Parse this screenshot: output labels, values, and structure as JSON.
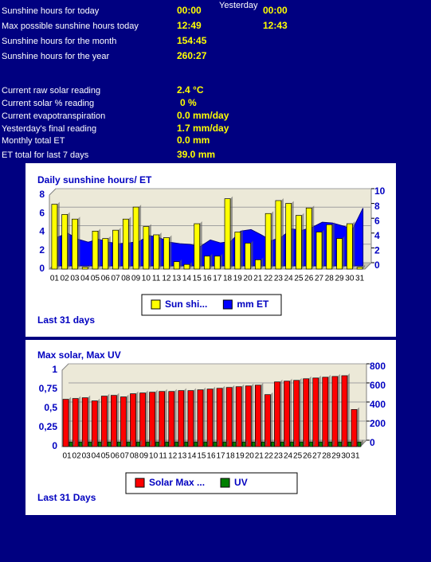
{
  "yesterday_header": "Yesterday",
  "stats": [
    {
      "label": "Sunshine hours for today",
      "value": "00:00",
      "yesterday": "00:00"
    },
    {
      "label": "Max possible sunshine hours today",
      "value": "12:49",
      "yesterday": "12:43"
    },
    {
      "label": "Sunshine hours for the month",
      "value": "154:45"
    },
    {
      "label": "Sunshine hours for the year",
      "value": "260:27"
    }
  ],
  "readings": [
    {
      "label": "Current raw solar reading",
      "value": "2.4 °C"
    },
    {
      "label": "Current solar % reading",
      "value": "0 %"
    },
    {
      "label": "Current evapotranspiration",
      "value": "0.0 mm/day"
    },
    {
      "label": "Yesterday's final reading",
      "value": "1.7 mm/day"
    },
    {
      "label": "Monthly total ET",
      "value": "0.0 mm"
    },
    {
      "label": "ET total for last 7 days",
      "value": "39.0 mm"
    }
  ],
  "chart_data": [
    {
      "type": "bar",
      "title": "Daily sunshine hours/ ET",
      "footer": "Last 31 days",
      "categories": [
        "01",
        "02",
        "03",
        "04",
        "05",
        "06",
        "07",
        "08",
        "09",
        "10",
        "11",
        "12",
        "13",
        "14",
        "15",
        "16",
        "17",
        "18",
        "19",
        "20",
        "21",
        "22",
        "23",
        "24",
        "25",
        "26",
        "27",
        "28",
        "29",
        "30",
        "31"
      ],
      "series": [
        {
          "name": "Sun shi...",
          "type": "bar",
          "color": "#ffff00",
          "values": [
            7.0,
            5.9,
            5.4,
            0.2,
            4.1,
            3.3,
            4.2,
            5.4,
            6.7,
            4.6,
            3.7,
            3.4,
            0.8,
            0.5,
            4.9,
            1.4,
            1.4,
            7.6,
            4.0,
            2.8,
            1.0,
            6.0,
            7.4,
            7.1,
            5.8,
            6.6,
            4.0,
            4.8,
            3.3,
            4.9,
            0.2
          ]
        },
        {
          "name": "mm ET",
          "type": "area",
          "axis": "y2",
          "color": "#0000ff",
          "values": [
            3.9,
            4.4,
            3.6,
            3.2,
            3.6,
            3.2,
            3.0,
            3.1,
            3.3,
            4.1,
            3.8,
            3.2,
            3.0,
            2.9,
            2.6,
            3.5,
            3.1,
            3.3,
            4.7,
            4.9,
            4.2,
            3.4,
            3.9,
            5.0,
            4.8,
            5.2,
            5.9,
            5.8,
            5.4,
            5.0,
            7.8
          ]
        }
      ],
      "ylim": [
        0,
        8
      ],
      "yticks": [
        0,
        2,
        4,
        6,
        8
      ],
      "y2lim": [
        0,
        10
      ],
      "y2ticks": [
        0,
        2,
        4,
        6,
        8,
        10
      ],
      "grid": true
    },
    {
      "type": "bar",
      "title": "Max solar, Max UV",
      "footer": "Last 31 Days",
      "categories": [
        "01",
        "02",
        "03",
        "04",
        "05",
        "06",
        "07",
        "08",
        "09",
        "10",
        "11",
        "12",
        "13",
        "14",
        "15",
        "16",
        "17",
        "18",
        "19",
        "20",
        "21",
        "22",
        "23",
        "24",
        "25",
        "26",
        "27",
        "28",
        "29",
        "30",
        "31"
      ],
      "series": [
        {
          "name": "Solar Max ...",
          "type": "bar",
          "axis": "y2",
          "color": "#ff0000",
          "values": [
            495,
            503,
            511,
            478,
            528,
            536,
            520,
            553,
            561,
            569,
            577,
            577,
            586,
            586,
            594,
            602,
            610,
            619,
            627,
            635,
            643,
            544,
            677,
            685,
            693,
            710,
            718,
            726,
            734,
            742,
            388
          ]
        },
        {
          "name": "UV",
          "type": "bar",
          "color": "#008000",
          "values": [
            0.06,
            0.06,
            0.06,
            0.06,
            0.06,
            0.06,
            0.06,
            0.06,
            0.06,
            0.06,
            0.06,
            0.06,
            0.06,
            0.06,
            0.06,
            0.06,
            0.06,
            0.06,
            0.06,
            0.06,
            0.06,
            0.06,
            0.06,
            0.06,
            0.06,
            0.06,
            0.06,
            0.06,
            0.06,
            0.06,
            0.06
          ]
        }
      ],
      "ylim": [
        0,
        1
      ],
      "yticks": [
        0,
        {
          "value": 0.25,
          "label": "0,25"
        },
        {
          "value": 0.5,
          "label": "0,5"
        },
        {
          "value": 0.75,
          "label": "0,75"
        },
        1
      ],
      "y2lim": [
        0,
        800
      ],
      "y2ticks": [
        0,
        200,
        400,
        600,
        800
      ],
      "grid": true
    }
  ]
}
